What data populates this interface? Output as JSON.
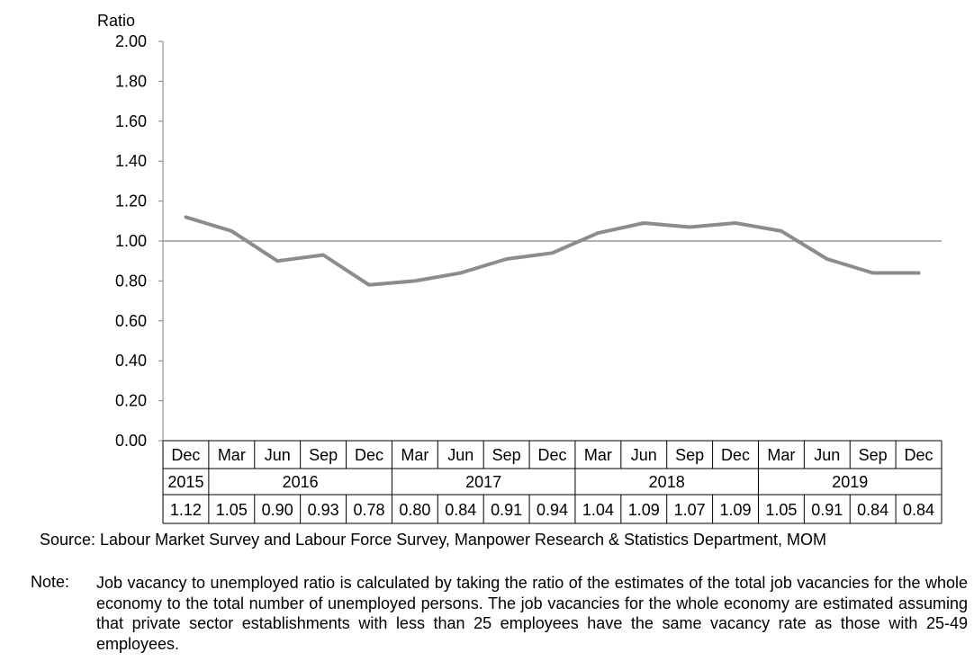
{
  "chart_data": {
    "type": "line",
    "ylabel": "Ratio",
    "ylim": [
      0,
      2
    ],
    "yticks": [
      "2.00",
      "1.80",
      "1.60",
      "1.40",
      "1.20",
      "1.00",
      "0.80",
      "0.60",
      "0.40",
      "0.20",
      "0.00"
    ],
    "reference_line": 1.0,
    "categories": [
      "Dec",
      "Mar",
      "Jun",
      "Sep",
      "Dec",
      "Mar",
      "Jun",
      "Sep",
      "Dec",
      "Mar",
      "Jun",
      "Sep",
      "Dec",
      "Mar",
      "Jun",
      "Sep",
      "Dec"
    ],
    "years": [
      "2015",
      "2016",
      "2017",
      "2018",
      "2019"
    ],
    "values": [
      1.12,
      1.05,
      0.9,
      0.93,
      0.78,
      0.8,
      0.84,
      0.91,
      0.94,
      1.04,
      1.09,
      1.07,
      1.09,
      1.05,
      0.91,
      0.84,
      0.84
    ],
    "value_labels": [
      "1.12",
      "1.05",
      "0.90",
      "0.93",
      "0.78",
      "0.80",
      "0.84",
      "0.91",
      "0.94",
      "1.04",
      "1.09",
      "1.07",
      "1.09",
      "1.05",
      "0.91",
      "0.84",
      "0.84"
    ],
    "line_color": "#8c8c8c",
    "grid": false
  },
  "source": "Source: Labour Market Survey and Labour Force Survey, Manpower Research & Statistics Department, MOM",
  "note": {
    "label": "Note:",
    "text": "Job vacancy to unemployed ratio is calculated by taking the ratio of the estimates of the total job vacancies for the whole economy to the total number of unemployed persons. The job vacancies for the whole economy are estimated assuming that private sector establishments with less than 25 employees have the same vacancy rate as those with 25-49 employees."
  }
}
